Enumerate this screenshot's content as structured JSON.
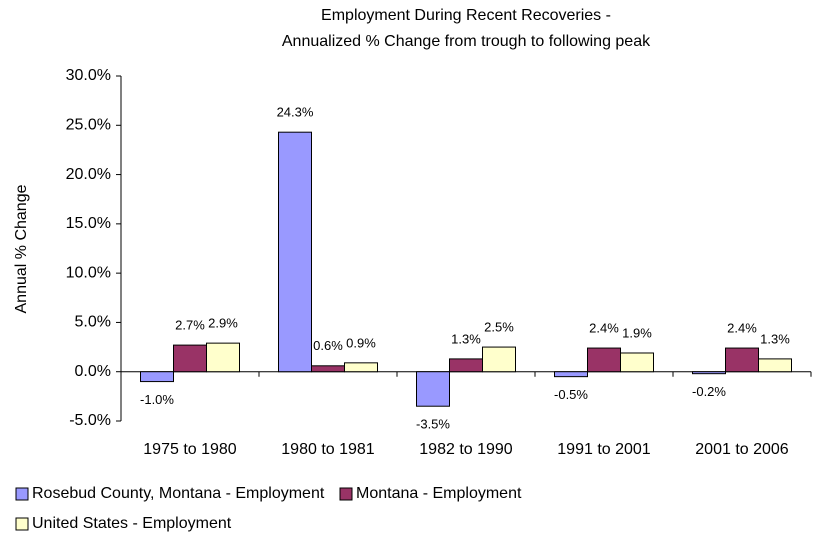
{
  "chart_data": {
    "type": "bar",
    "title": [
      "Employment During Recent Recoveries -",
      "Annualized % Change from trough to following peak"
    ],
    "y_label": "Annual % Change",
    "categories": [
      "1975 to 1980",
      "1980 to 1981",
      "1982 to 1990",
      "1991 to 2001",
      "2001 to 2006"
    ],
    "series": [
      {
        "name": "Rosebud County, Montana - Employment",
        "color": "#9999ff",
        "values": [
          -1.0,
          24.3,
          -3.5,
          -0.5,
          -0.2
        ],
        "value_labels": [
          "-1.0%",
          "24.3%",
          "-3.5%",
          "-0.5%",
          "-0.2%"
        ]
      },
      {
        "name": "Montana - Employment",
        "color": "#993366",
        "values": [
          2.7,
          0.6,
          1.3,
          2.4,
          2.4
        ],
        "value_labels": [
          "2.7%",
          "0.6%",
          "1.3%",
          "2.4%",
          "2.4%"
        ]
      },
      {
        "name": "United States - Employment",
        "color": "#ffffcc",
        "values": [
          2.9,
          0.9,
          2.5,
          1.9,
          1.3
        ],
        "value_labels": [
          "2.9%",
          "0.9%",
          "2.5%",
          "1.9%",
          "1.3%"
        ]
      }
    ],
    "ylim": [
      -5,
      30
    ],
    "yticks": [
      {
        "value": -5,
        "label": "-5.0%"
      },
      {
        "value": 0,
        "label": "0.0%"
      },
      {
        "value": 5,
        "label": "5.0%"
      },
      {
        "value": 10,
        "label": "10.0%"
      },
      {
        "value": 15,
        "label": "15.0%"
      },
      {
        "value": 20,
        "label": "20.0%"
      },
      {
        "value": 25,
        "label": "25.0%"
      },
      {
        "value": 30,
        "label": "30.0%"
      }
    ],
    "grid": false,
    "legend": "bottom-left"
  }
}
